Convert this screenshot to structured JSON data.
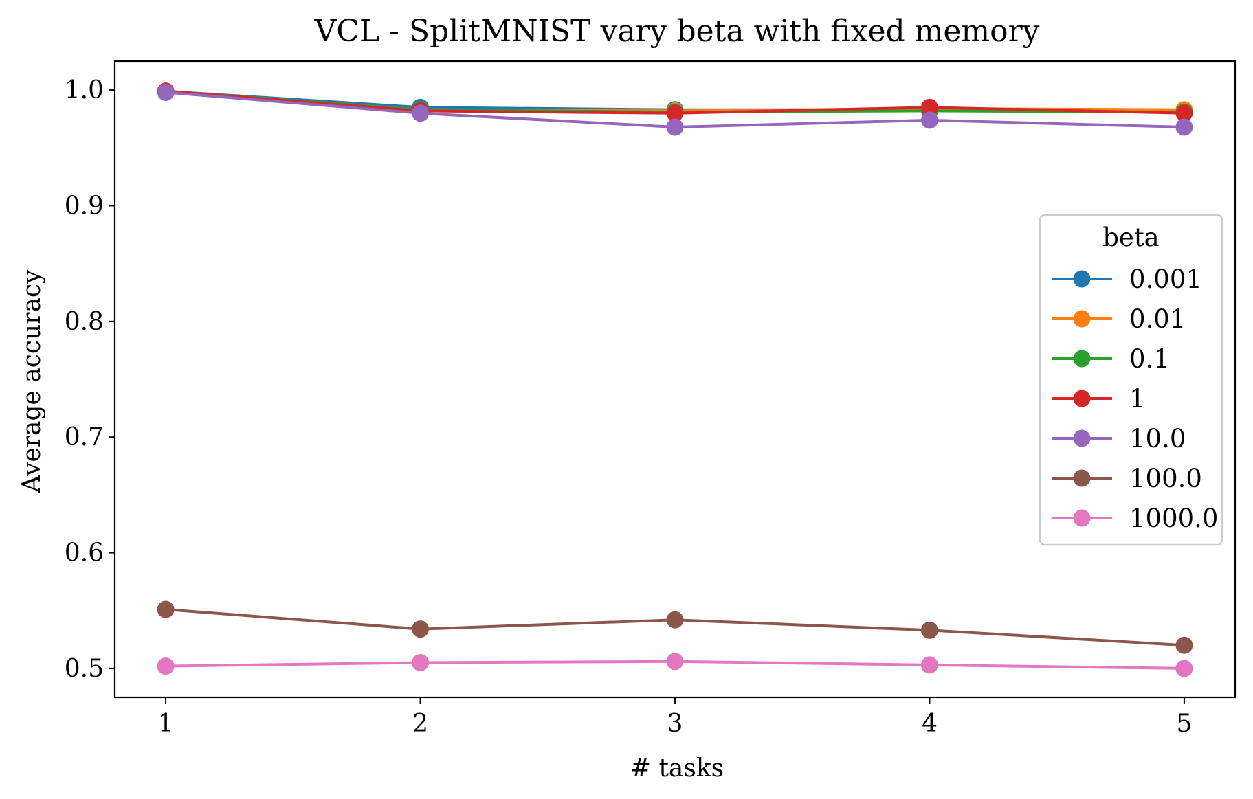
{
  "chart_data": {
    "type": "line",
    "title": "VCL - SplitMNIST vary beta with fixed memory",
    "xlabel": "# tasks",
    "ylabel": "Average accuracy",
    "x": [
      1,
      2,
      3,
      4,
      5
    ],
    "xticks": [
      "1",
      "2",
      "3",
      "4",
      "5"
    ],
    "yticks": [
      "0.5",
      "0.6",
      "0.7",
      "0.8",
      "0.9",
      "1.0"
    ],
    "xlim": [
      0.8,
      5.2
    ],
    "ylim": [
      0.475,
      1.025
    ],
    "grid": false,
    "legend": {
      "title": "beta",
      "position": "right"
    },
    "series": [
      {
        "name": "0.001",
        "color": "#1f77b4",
        "values": [
          0.999,
          0.985,
          0.983,
          0.983,
          0.982
        ]
      },
      {
        "name": "0.01",
        "color": "#ff7f0e",
        "values": [
          0.999,
          0.983,
          0.982,
          0.984,
          0.983
        ]
      },
      {
        "name": "0.1",
        "color": "#2ca02c",
        "values": [
          0.999,
          0.983,
          0.981,
          0.982,
          0.981
        ]
      },
      {
        "name": "1",
        "color": "#d62728",
        "values": [
          0.999,
          0.982,
          0.98,
          0.985,
          0.98
        ]
      },
      {
        "name": "10.0",
        "color": "#9467bd",
        "values": [
          0.998,
          0.98,
          0.968,
          0.974,
          0.968
        ]
      },
      {
        "name": "100.0",
        "color": "#8c564b",
        "values": [
          0.551,
          0.534,
          0.542,
          0.533,
          0.52
        ]
      },
      {
        "name": "1000.0",
        "color": "#e377c2",
        "values": [
          0.502,
          0.505,
          0.506,
          0.503,
          0.5
        ]
      }
    ]
  }
}
